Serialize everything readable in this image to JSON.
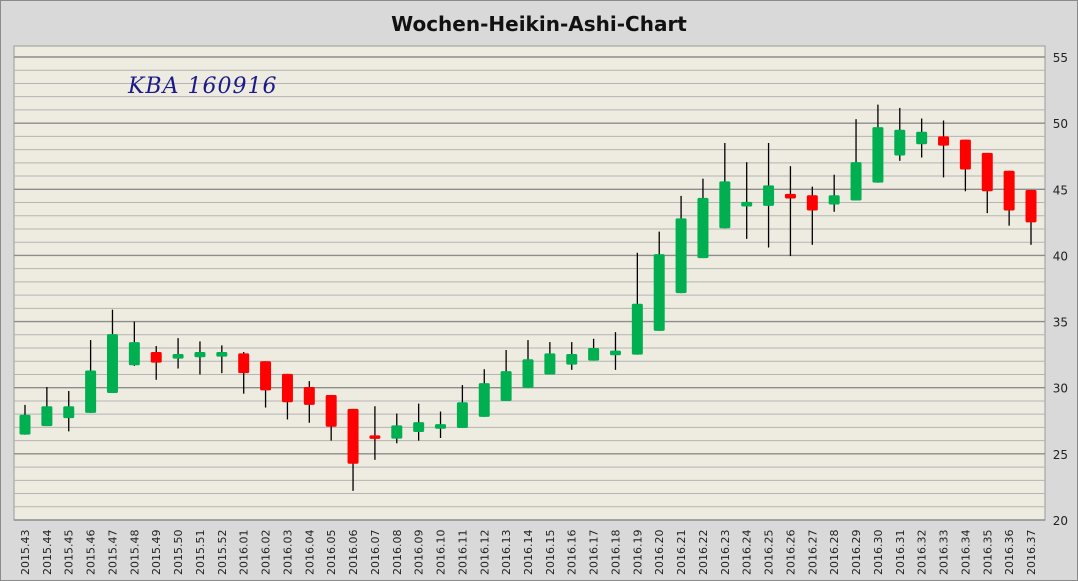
{
  "chart_data": {
    "type": "candlestick",
    "title": "Wochen-Heikin-Ashi-Chart",
    "annotation": "KBA 160916",
    "ylim": [
      20,
      55
    ],
    "yticks": [
      20,
      25,
      30,
      35,
      40,
      45,
      50,
      55
    ],
    "y_axis_position": "right",
    "grid": true,
    "colors": {
      "up": "#00b050",
      "down": "#ff0000",
      "wick": "#000000",
      "background": "#eeebe0"
    },
    "categories": [
      "2015.43",
      "2015.44",
      "2015.45",
      "2015.46",
      "2015.47",
      "2015.48",
      "2015.49",
      "2015.50",
      "2015.51",
      "2015.52",
      "2016.01",
      "2016.02",
      "2016.03",
      "2016.04",
      "2016.05",
      "2016.06",
      "2016.07",
      "2016.08",
      "2016.09",
      "2016.10",
      "2016.11",
      "2016.12",
      "2016.13",
      "2016.14",
      "2016.15",
      "2016.16",
      "2016.17",
      "2016.18",
      "2016.19",
      "2016.20",
      "2016.21",
      "2016.22",
      "2016.23",
      "2016.24",
      "2016.25",
      "2016.26",
      "2016.27",
      "2016.28",
      "2016.29",
      "2016.30",
      "2016.31",
      "2016.32",
      "2016.33",
      "2016.34",
      "2016.35",
      "2016.36",
      "2016.37"
    ],
    "open": [
      26.45,
      27.1,
      27.7,
      28.1,
      29.6,
      31.7,
      32.7,
      32.2,
      32.3,
      32.35,
      32.6,
      32.0,
      31.05,
      30.05,
      29.45,
      28.4,
      26.4,
      26.15,
      26.65,
      26.9,
      26.95,
      27.8,
      29.0,
      30.0,
      31.0,
      31.75,
      32.05,
      32.45,
      32.5,
      34.3,
      37.15,
      39.8,
      42.05,
      43.7,
      43.75,
      44.65,
      44.55,
      43.85,
      44.15,
      45.5,
      47.55,
      48.4,
      49.0,
      48.75,
      47.75,
      46.4,
      44.95
    ],
    "close": [
      27.96,
      28.6,
      28.6,
      31.3,
      34.05,
      33.45,
      31.9,
      32.55,
      32.7,
      32.7,
      31.1,
      29.8,
      28.9,
      28.7,
      27.05,
      24.25,
      26.15,
      27.15,
      27.4,
      27.25,
      28.9,
      30.35,
      31.25,
      32.15,
      32.6,
      32.55,
      33.0,
      32.8,
      36.35,
      40.1,
      42.8,
      44.35,
      45.6,
      44.05,
      45.3,
      44.3,
      43.4,
      44.55,
      47.05,
      49.7,
      49.5,
      49.35,
      48.3,
      46.5,
      44.85,
      43.4,
      42.5
    ],
    "high": [
      28.7,
      30.05,
      29.75,
      33.6,
      35.9,
      35.0,
      33.15,
      33.75,
      33.5,
      33.2,
      32.7,
      32.0,
      31.05,
      30.5,
      29.45,
      28.4,
      28.6,
      28.05,
      28.8,
      28.2,
      30.2,
      31.4,
      32.85,
      33.6,
      33.45,
      33.45,
      33.7,
      34.2,
      40.2,
      41.8,
      44.5,
      45.8,
      48.5,
      47.05,
      48.5,
      46.75,
      45.2,
      46.1,
      50.3,
      51.4,
      51.15,
      50.35,
      50.2,
      48.75,
      47.75,
      46.4,
      44.95
    ],
    "low": [
      26.45,
      27.1,
      26.7,
      28.1,
      29.6,
      31.65,
      30.6,
      31.45,
      31.0,
      31.1,
      29.55,
      28.5,
      27.6,
      27.35,
      26.0,
      22.2,
      24.55,
      25.8,
      26.0,
      26.2,
      26.95,
      27.8,
      29.0,
      30.0,
      31.0,
      31.35,
      32.05,
      31.35,
      32.5,
      34.3,
      37.15,
      39.8,
      42.05,
      41.25,
      40.6,
      39.95,
      40.8,
      43.3,
      44.15,
      45.5,
      47.15,
      47.4,
      45.9,
      44.85,
      43.2,
      42.25,
      40.8
    ]
  }
}
